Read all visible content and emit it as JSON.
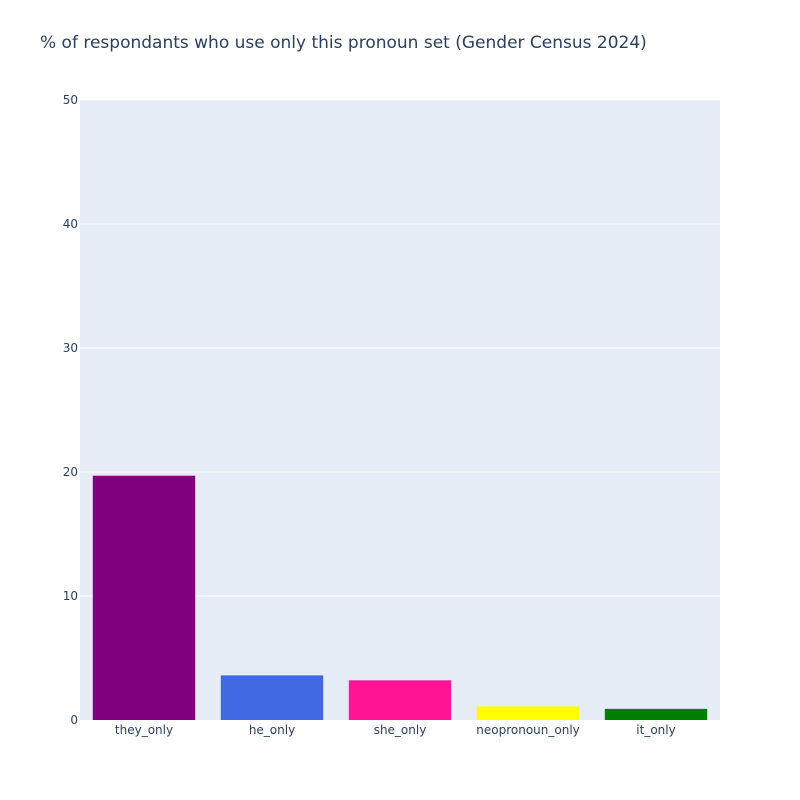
{
  "chart_data": {
    "type": "bar",
    "title": "% of respondants who use only this pronoun set (Gender Census 2024)",
    "categories": [
      "they_only",
      "he_only",
      "she_only",
      "neopronoun_only",
      "it_only"
    ],
    "values": [
      19.7,
      3.6,
      3.2,
      1.1,
      0.9
    ],
    "colors": [
      "#800080",
      "#4169e1",
      "#ff1493",
      "#ffff00",
      "#008000"
    ],
    "ylim": [
      0,
      50
    ],
    "yticks": [
      0,
      10,
      20,
      30,
      40,
      50
    ],
    "grid": true,
    "plot_bg": "#e5ecf6",
    "grid_color": "#ffffff",
    "text_color": "#2a3f5f"
  }
}
